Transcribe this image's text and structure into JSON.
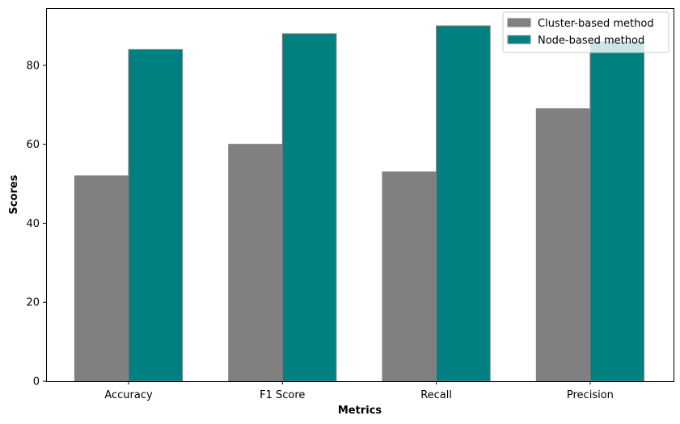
{
  "chart_data": {
    "type": "bar",
    "categories": [
      "Accuracy",
      "F1 Score",
      "Recall",
      "Precision"
    ],
    "series": [
      {
        "name": "Cluster-based method",
        "values": [
          52,
          60,
          53,
          69
        ],
        "color": "#808080"
      },
      {
        "name": "Node-based method",
        "values": [
          84,
          88,
          90,
          86
        ],
        "color": "#008080"
      }
    ],
    "bar_edge_color": "#808080",
    "xlabel": "Metrics",
    "ylabel": "Scores",
    "ylim": [
      0,
      94.5
    ],
    "yticks": [
      0,
      20,
      40,
      60,
      80
    ],
    "grid": false,
    "legend_position": "top-right"
  }
}
